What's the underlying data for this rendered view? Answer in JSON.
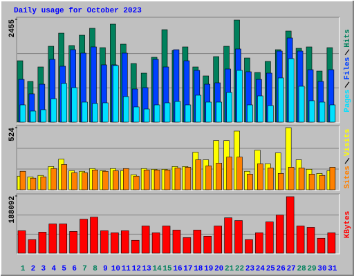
{
  "title": "Daily usage for October 2023",
  "chart_data": [
    {
      "type": "bar",
      "ylim": [
        0,
        2455
      ],
      "yticks": [
        2455
      ],
      "series": [
        {
          "name": "Hits",
          "color": "#00805c",
          "values": [
            1466,
            972,
            1318,
            1812,
            2125,
            1829,
            2076,
            2241,
            1779,
            2340,
            1862,
            1400,
            1170,
            1549,
            2208,
            1713,
            1796,
            1318,
            1104,
            1565,
            1812,
            2438,
            1532,
            1186,
            1450,
            1730,
            2175,
            1763,
            1796,
            1219,
            1779
          ]
        },
        {
          "name": "Files",
          "color": "#0040ff",
          "values": [
            1021,
            676,
            906,
            1499,
            1335,
            1730,
            1648,
            1796,
            1368,
            1368,
            1648,
            791,
            824,
            1499,
            1318,
            1730,
            1466,
            1236,
            906,
            939,
            1269,
            1747,
            1203,
            1021,
            1170,
            1697,
            2010,
            1697,
            1252,
            972,
            1252
          ]
        },
        {
          "name": "Pages",
          "color": "#00e0ff",
          "values": [
            412,
            264,
            297,
            560,
            923,
            824,
            478,
            445,
            461,
            1351,
            610,
            363,
            313,
            412,
            461,
            494,
            412,
            643,
            478,
            478,
            709,
            1236,
            412,
            626,
            396,
            1055,
            1516,
            857,
            511,
            478,
            412
          ]
        }
      ]
    },
    {
      "type": "bar",
      "ylim": [
        0,
        524
      ],
      "yticks": [
        524
      ],
      "series": [
        {
          "name": "Visits",
          "color": "#ffff00",
          "values": [
            115,
            109,
            121,
            196,
            259,
            161,
            156,
            179,
            161,
            179,
            161,
            127,
            179,
            173,
            173,
            196,
            196,
            317,
            253,
            415,
            415,
            495,
            156,
            334,
            219,
            311,
            524,
            253,
            173,
            138,
            161
          ]
        },
        {
          "name": "Sites",
          "color": "#ff8000",
          "values": [
            156,
            98,
            109,
            179,
            213,
            144,
            144,
            167,
            156,
            161,
            179,
            115,
            167,
            167,
            167,
            184,
            190,
            253,
            202,
            225,
            276,
            276,
            132,
            219,
            184,
            138,
            190,
            184,
            132,
            121,
            190
          ]
        }
      ]
    },
    {
      "type": "bar",
      "ylim": [
        0,
        188092
      ],
      "yticks": [
        188092
      ],
      "categories": [
        "1",
        "2",
        "3",
        "4",
        "5",
        "6",
        "7",
        "8",
        "9",
        "10",
        "11",
        "12",
        "13",
        "14",
        "15",
        "16",
        "17",
        "18",
        "19",
        "20",
        "21",
        "22",
        "23",
        "24",
        "25",
        "26",
        "27",
        "28",
        "29",
        "30",
        "31"
      ],
      "label_colors": [
        "#00805c",
        "#0000ff",
        "#0000ff",
        "#0000ff",
        "#0000ff",
        "#0000ff",
        "#00805c",
        "#00805c",
        "#0000ff",
        "#0000ff",
        "#0000ff",
        "#0000ff",
        "#0000ff",
        "#00805c",
        "#00805c",
        "#0000ff",
        "#0000ff",
        "#0000ff",
        "#0000ff",
        "#0000ff",
        "#00805c",
        "#00805c",
        "#0000ff",
        "#0000ff",
        "#0000ff",
        "#0000ff",
        "#0000ff",
        "#00805c",
        "#00805c",
        "#0000ff",
        "#0000ff"
      ],
      "series": [
        {
          "name": "KBytes",
          "color": "#ff0000",
          "values": [
            73887,
            44780,
            69409,
            96277,
            96277,
            71648,
            111950,
            118667,
            73887,
            67170,
            73887,
            42541,
            89560,
            67170,
            89560,
            76126,
            51497,
            76126,
            55975,
            89560,
            116428,
            107472,
            44780,
            67170,
            102994,
            125384,
            185837,
            89560,
            85082,
            49258,
            67170
          ]
        }
      ]
    }
  ]
}
